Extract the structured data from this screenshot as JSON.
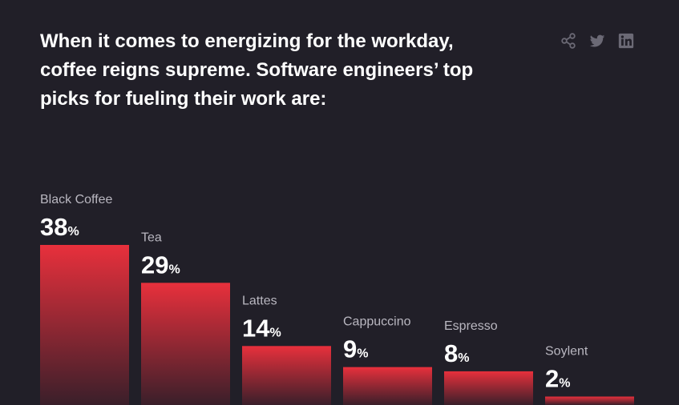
{
  "headline": "When it comes to energizing for the workday, coffee reigns supreme. Software engineers’ top picks for fueling their work are:",
  "share": {
    "icons": [
      "share-icon",
      "twitter-icon",
      "linkedin-icon"
    ],
    "color": "#6b6975"
  },
  "colors": {
    "background": "#211f28",
    "bar_top": "#e8303c",
    "bar_bottom": "#3a1f2a"
  },
  "chart_data": {
    "type": "bar",
    "categories": [
      "Black Coffee",
      "Tea",
      "Lattes",
      "Cappuccino",
      "Espresso",
      "Soylent"
    ],
    "values": [
      38,
      29,
      14,
      9,
      8,
      2
    ],
    "value_suffix": "%",
    "title": "",
    "xlabel": "",
    "ylabel": "",
    "ylim": [
      0,
      38
    ],
    "grid": false,
    "legend": "none"
  }
}
